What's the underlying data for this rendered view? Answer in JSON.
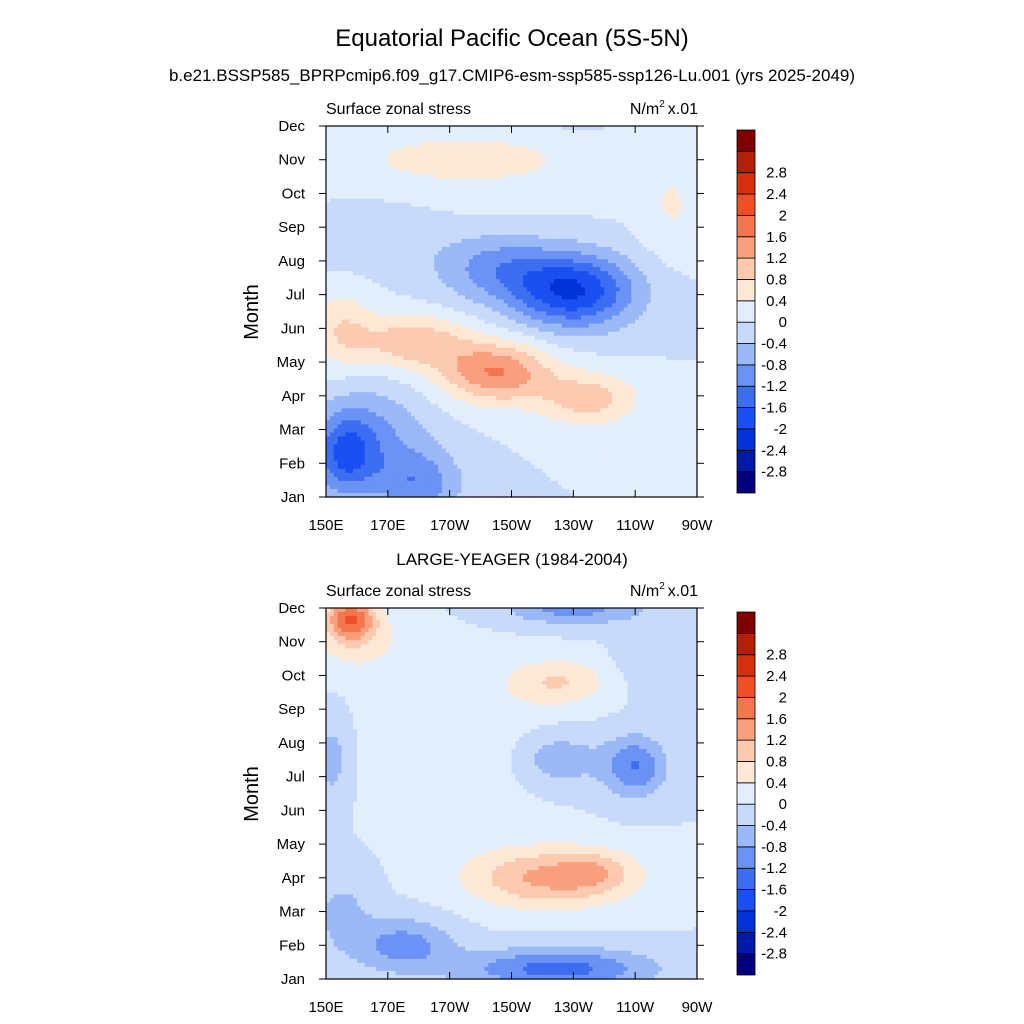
{
  "figure": {
    "title": "Equatorial Pacific Ocean (5S-5N)",
    "subtitle": "b.e21.BSSP585_BPRPcmip6.f09_g17.CMIP6-esm-ssp585-ssp126-Lu.001 (yrs 2025-2049)"
  },
  "palette": [
    "#00007f",
    "#0019a6",
    "#0033d9",
    "#1a4ff2",
    "#3d6ef2",
    "#6b93f5",
    "#9bb8f7",
    "#c8dafa",
    "#e3eefc",
    "#fde8d6",
    "#fbcab0",
    "#f8a07d",
    "#f4764e",
    "#ee4f26",
    "#d5310e",
    "#b22007",
    "#7f0000"
  ],
  "chart_data": [
    {
      "type": "heatmap",
      "panel_title": "",
      "variable_label": "Surface zonal stress",
      "units_label": "N/m",
      "units_exponent": "2",
      "units_scale": "x.01",
      "xlabel": "",
      "ylabel": "Month",
      "x_ticks": [
        "150E",
        "170E",
        "170W",
        "150W",
        "130W",
        "110W",
        "90W"
      ],
      "y_ticks": [
        "Jan",
        "Feb",
        "Mar",
        "Apr",
        "May",
        "Jun",
        "Jul",
        "Aug",
        "Sep",
        "Oct",
        "Nov",
        "Dec"
      ],
      "x_range_deg_east": [
        150,
        270
      ],
      "y_range_months": [
        1,
        12
      ],
      "levels": [
        -2.8,
        -2.4,
        -2,
        -1.6,
        -1.2,
        -0.8,
        -0.4,
        0,
        0.4,
        0.8,
        1.2,
        1.6,
        2,
        2.4,
        2.8
      ],
      "level_labels": [
        "-2.8",
        "-2.4",
        "-2",
        "-1.6",
        "-1.2",
        "-0.8",
        "-0.4",
        "0",
        "0.4",
        "0.8",
        "1.2",
        "1.6",
        "2",
        "2.4",
        "2.8"
      ],
      "features": [
        {
          "lon": 156,
          "month": 2.2,
          "value": -1.3,
          "slon": 10,
          "smon": 1.2
        },
        {
          "lon": 180,
          "month": 1.4,
          "value": -1.0,
          "slon": 14,
          "smon": 1.0
        },
        {
          "lon": 165,
          "month": 2.8,
          "value": -0.8,
          "slon": 18,
          "smon": 1.5
        },
        {
          "lon": 205,
          "month": 4.7,
          "value": 1.6,
          "slon": 18,
          "smon": 0.9
        },
        {
          "lon": 178,
          "month": 5.6,
          "value": 1.1,
          "slon": 18,
          "smon": 0.8
        },
        {
          "lon": 235,
          "month": 3.9,
          "value": 1.0,
          "slon": 16,
          "smon": 0.8
        },
        {
          "lon": 155,
          "month": 6.0,
          "value": 0.7,
          "slon": 10,
          "smon": 1.2
        },
        {
          "lon": 230,
          "month": 7.1,
          "value": -2.0,
          "slon": 20,
          "smon": 1.1
        },
        {
          "lon": 205,
          "month": 7.8,
          "value": -0.9,
          "slon": 20,
          "smon": 1.0
        },
        {
          "lon": 165,
          "month": 8.8,
          "value": -0.4,
          "slon": 20,
          "smon": 1.0
        },
        {
          "lon": 195,
          "month": 11.0,
          "value": 0.5,
          "slon": 55,
          "smon": 1.2
        },
        {
          "lon": 262,
          "month": 9.5,
          "value": 0.4,
          "slon": 10,
          "smon": 1.5
        },
        {
          "lon": 225,
          "month": 12.2,
          "value": -0.3,
          "slon": 25,
          "smon": 0.4
        }
      ]
    },
    {
      "type": "heatmap",
      "panel_title": "LARGE-YEAGER (1984-2004)",
      "variable_label": "Surface zonal stress",
      "units_label": "N/m",
      "units_exponent": "2",
      "units_scale": "x.01",
      "xlabel": "",
      "ylabel": "Month",
      "x_ticks": [
        "150E",
        "170E",
        "170W",
        "150W",
        "130W",
        "110W",
        "90W"
      ],
      "y_ticks": [
        "Jan",
        "Feb",
        "Mar",
        "Apr",
        "May",
        "Jun",
        "Jul",
        "Aug",
        "Sep",
        "Oct",
        "Nov",
        "Dec"
      ],
      "x_range_deg_east": [
        150,
        270
      ],
      "y_range_months": [
        1,
        12
      ],
      "levels": [
        -2.8,
        -2.4,
        -2,
        -1.6,
        -1.2,
        -0.8,
        -0.4,
        0,
        0.4,
        0.8,
        1.2,
        1.6,
        2,
        2.4,
        2.8
      ],
      "level_labels": [
        "-2.8",
        "-2.4",
        "-2",
        "-1.6",
        "-1.2",
        "-0.8",
        "-0.4",
        "0",
        "0.4",
        "0.8",
        "1.2",
        "1.6",
        "2",
        "2.4",
        "2.8"
      ],
      "features": [
        {
          "lon": 158,
          "month": 11.7,
          "value": 1.8,
          "slon": 8,
          "smon": 0.6
        },
        {
          "lon": 160,
          "month": 11.0,
          "value": 0.6,
          "slon": 14,
          "smon": 0.9
        },
        {
          "lon": 222,
          "month": 4.0,
          "value": 1.3,
          "slon": 26,
          "smon": 0.9
        },
        {
          "lon": 238,
          "month": 4.2,
          "value": 0.5,
          "slon": 12,
          "smon": 0.6
        },
        {
          "lon": 225,
          "month": 9.8,
          "value": 0.8,
          "slon": 16,
          "smon": 0.7
        },
        {
          "lon": 225,
          "month": 1.3,
          "value": -1.4,
          "slon": 30,
          "smon": 0.6
        },
        {
          "lon": 175,
          "month": 2.0,
          "value": -1.0,
          "slon": 16,
          "smon": 0.8
        },
        {
          "lon": 155,
          "month": 3.0,
          "value": -0.5,
          "slon": 10,
          "smon": 1.2
        },
        {
          "lon": 152,
          "month": 7.5,
          "value": -0.6,
          "slon": 5,
          "smon": 1.2
        },
        {
          "lon": 250,
          "month": 7.3,
          "value": -1.2,
          "slon": 10,
          "smon": 0.9
        },
        {
          "lon": 225,
          "month": 7.5,
          "value": -0.7,
          "slon": 14,
          "smon": 0.8
        },
        {
          "lon": 230,
          "month": 12.0,
          "value": -1.0,
          "slon": 22,
          "smon": 0.5
        },
        {
          "lon": 255,
          "month": 10.5,
          "value": -0.4,
          "slon": 10,
          "smon": 1.0
        },
        {
          "lon": 195,
          "month": 8.0,
          "value": 0.3,
          "slon": 25,
          "smon": 2.5
        }
      ]
    }
  ]
}
